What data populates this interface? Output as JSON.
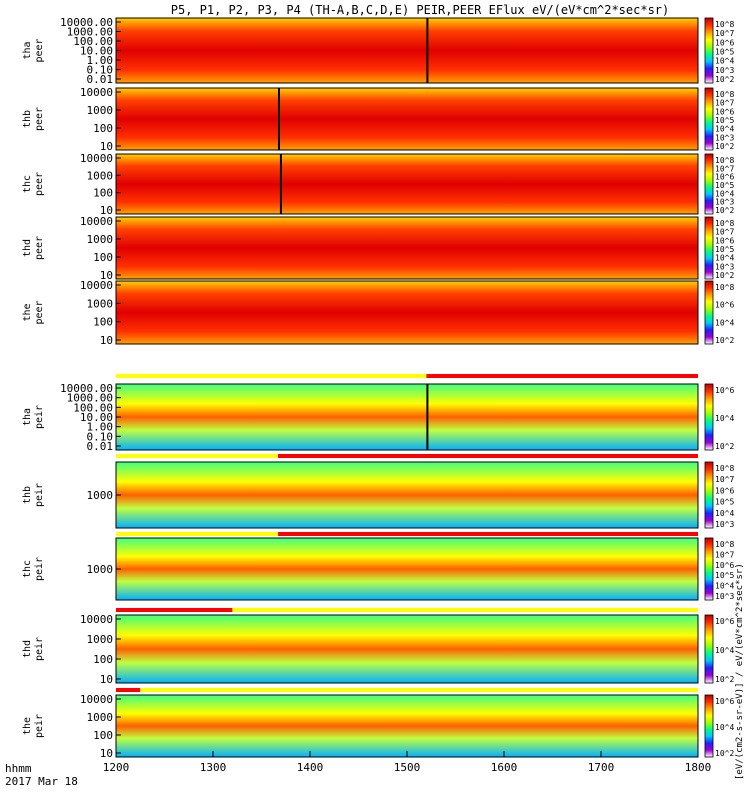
{
  "chart_data": {
    "type": "heatmap",
    "title": "P5, P1, P2, P3, P4 (TH-A,B,C,D,E) PEIR,PEER EFlux eV/(eV*cm^2*sec*sr)",
    "x_tick_labels": [
      "1200",
      "1300",
      "1400",
      "1500",
      "1600",
      "1700",
      "1800"
    ],
    "x_ticks": [
      1200,
      1300,
      1400,
      1500,
      1600,
      1700,
      1800
    ],
    "xlim": [
      1200,
      1800
    ],
    "xaxis_label_line1": "hhmm",
    "xaxis_label_line2": "2017 Mar 18",
    "colorbar_axis_label": "[eV/(cm2-s-sr-eV)] / eV/(eV*cm^2*sec*sr)",
    "colorscale": [
      "#ffffff",
      "#a000d0",
      "#2020ff",
      "#00c8ff",
      "#00ff80",
      "#a0ff00",
      "#ffff00",
      "#ffa000",
      "#ff3000",
      "#c00000"
    ],
    "panels": [
      {
        "probe": "tha",
        "species": "peer",
        "ylabels": [
          "10000.00",
          "1000.00",
          "100.00",
          "10.00",
          "1.00",
          "0.10",
          "0.01"
        ],
        "cbar_labels": [
          "10^8",
          "10^7",
          "10^6",
          "10^5",
          "10^4",
          "10^3",
          "10^2"
        ],
        "gaps": [
          [
            1520,
            1522
          ]
        ],
        "bar": null
      },
      {
        "probe": "thb",
        "species": "peer",
        "ylabels": [
          "10000",
          "1000",
          "100",
          "10"
        ],
        "cbar_labels": [
          "10^8",
          "10^7",
          "10^6",
          "10^5",
          "10^4",
          "10^3",
          "10^2"
        ],
        "gaps": [
          [
            1367,
            1369
          ]
        ],
        "bar": null
      },
      {
        "probe": "thc",
        "species": "peer",
        "ylabels": [
          "10000",
          "1000",
          "100",
          "10"
        ],
        "cbar_labels": [
          "10^8",
          "10^7",
          "10^6",
          "10^5",
          "10^4",
          "10^3",
          "10^2"
        ],
        "gaps": [
          [
            1369,
            1371
          ]
        ],
        "bar": null
      },
      {
        "probe": "thd",
        "species": "peer",
        "ylabels": [
          "10000",
          "1000",
          "100",
          "10"
        ],
        "cbar_labels": [
          "10^8",
          "10^7",
          "10^6",
          "10^5",
          "10^4",
          "10^3",
          "10^2"
        ],
        "gaps": [],
        "bar": null
      },
      {
        "probe": "the",
        "species": "peer",
        "ylabels": [
          "10000",
          "1000",
          "100",
          "10"
        ],
        "cbar_labels": [
          "10^8",
          "10^6",
          "10^4",
          "10^2"
        ],
        "gaps": [],
        "bar": {
          "segments": [
            [
              1200,
              1520,
              "#ffff00"
            ],
            [
              1520,
              1800,
              "#ff0000"
            ]
          ]
        }
      },
      {
        "probe": "tha",
        "species": "peir",
        "ylabels": [
          "10000.00",
          "1000.00",
          "100.00",
          "10.00",
          "1.00",
          "0.10",
          "0.01"
        ],
        "cbar_labels": [
          "10^6",
          "10^4",
          "10^2"
        ],
        "gaps": [
          [
            1520,
            1522
          ]
        ],
        "bar": {
          "segments": [
            [
              1200,
              1367,
              "#ffff00"
            ],
            [
              1367,
              1800,
              "#ff0000"
            ]
          ]
        }
      },
      {
        "probe": "thb",
        "species": "peir",
        "ylabels": [
          "1000"
        ],
        "cbar_labels": [
          "10^8",
          "10^7",
          "10^6",
          "10^5",
          "10^4",
          "10^3"
        ],
        "gaps": [],
        "bar": {
          "segments": [
            [
              1200,
              1367,
              "#ffff00"
            ],
            [
              1367,
              1800,
              "#ff0000"
            ]
          ]
        }
      },
      {
        "probe": "thc",
        "species": "peir",
        "ylabels": [
          "1000"
        ],
        "cbar_labels": [
          "10^8",
          "10^7",
          "10^6",
          "10^5",
          "10^4",
          "10^3"
        ],
        "gaps": [],
        "bar": {
          "segments": [
            [
              1200,
              1320,
              "#ff0000"
            ],
            [
              1320,
              1800,
              "#ffff00"
            ]
          ]
        }
      },
      {
        "probe": "thd",
        "species": "peir",
        "ylabels": [
          "10000",
          "1000",
          "100",
          "10"
        ],
        "cbar_labels": [
          "10^6",
          "10^4",
          "10^2"
        ],
        "gaps": [],
        "bar": {
          "segments": [
            [
              1200,
              1225,
              "#ff0000"
            ],
            [
              1225,
              1800,
              "#ffff00"
            ]
          ]
        }
      },
      {
        "probe": "the",
        "species": "peir",
        "ylabels": [
          "10000",
          "1000",
          "100",
          "10"
        ],
        "cbar_labels": [
          "10^6",
          "10^4",
          "10^2"
        ],
        "gaps": [],
        "bar": null
      }
    ]
  }
}
